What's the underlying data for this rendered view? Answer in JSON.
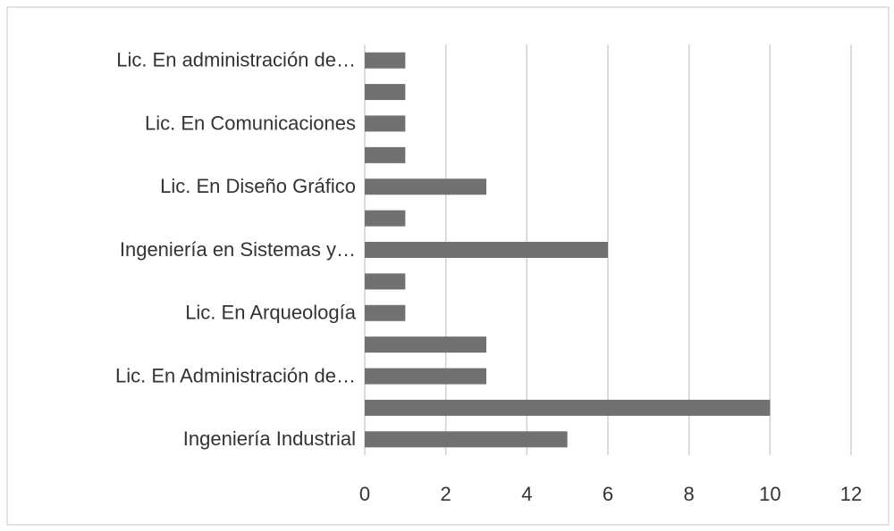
{
  "chart_data": {
    "type": "bar",
    "orientation": "horizontal",
    "categories": [
      "Lic. En administración de…",
      null,
      "Lic. En Comunicaciones",
      null,
      "Lic. En Diseño Gráfico",
      null,
      "Ingeniería en Sistemas y…",
      null,
      "Lic. En Arqueología",
      null,
      "Lic. En Administración de…",
      null,
      "Ingeniería Industrial"
    ],
    "values": [
      1,
      1,
      1,
      1,
      3,
      1,
      6,
      1,
      1,
      3,
      3,
      10,
      5
    ],
    "color": "#717171",
    "xlim": [
      0,
      12
    ],
    "xticks": [
      0,
      2,
      4,
      6,
      8,
      10,
      12
    ],
    "grid": true
  }
}
